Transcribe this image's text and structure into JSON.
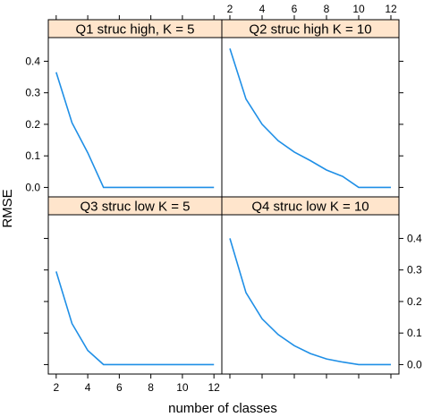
{
  "chart_data": {
    "type": "line",
    "layout": "2x2 lattice",
    "xlabel": "number of classes",
    "ylabel": "RMSE",
    "x": [
      2,
      3,
      4,
      5,
      6,
      7,
      8,
      9,
      10,
      11,
      12
    ],
    "xlim": [
      1.5,
      12.5
    ],
    "ylim": [
      -0.03,
      0.475
    ],
    "x_ticks": [
      2,
      4,
      6,
      8,
      10,
      12
    ],
    "y_ticks": [
      0.0,
      0.1,
      0.2,
      0.3,
      0.4
    ],
    "strip_color": "#ffe5cc",
    "line_color": "#1f8fe6",
    "panels": [
      {
        "label": "Q1 struc high, K = 5",
        "values": [
          0.365,
          0.205,
          0.11,
          0.0,
          0.0,
          0.0,
          0.0,
          0.0,
          0.0,
          0.0,
          0.0
        ]
      },
      {
        "label": "Q2 struc high K = 10",
        "values": [
          0.44,
          0.28,
          0.2,
          0.148,
          0.112,
          0.085,
          0.055,
          0.035,
          0.0,
          0.0,
          0.0
        ]
      },
      {
        "label": "Q3 struc low K = 5",
        "values": [
          0.295,
          0.13,
          0.045,
          0.0,
          0.0,
          0.0,
          0.0,
          0.0,
          0.0,
          0.0,
          0.0
        ]
      },
      {
        "label": "Q4 struc low K = 10",
        "values": [
          0.4,
          0.228,
          0.145,
          0.095,
          0.06,
          0.035,
          0.018,
          0.008,
          0.0,
          0.0,
          0.0
        ]
      }
    ]
  }
}
